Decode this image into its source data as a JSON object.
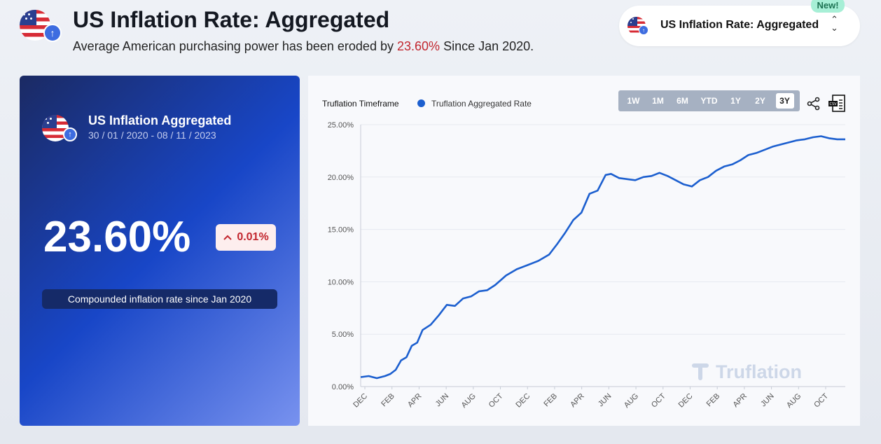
{
  "header": {
    "title": "US Inflation Rate: Aggregated",
    "subtitle_pre": "Average American purchasing power has been eroded by",
    "subtitle_value": "23.60%",
    "subtitle_post": "Since Jan 2020."
  },
  "selector": {
    "label": "US Inflation Rate: Aggregated",
    "new_badge": "New!"
  },
  "card": {
    "title": "US Inflation Aggregated",
    "dates": "30 / 01 / 2020 - 08 / 11 / 2023",
    "value": "23.60%",
    "change": "0.01%",
    "change_direction": "up",
    "caption": "Compounded inflation rate since Jan 2020"
  },
  "chart_panel": {
    "legend_title": "Truflation Timeframe",
    "series_label": "Truflation Aggregated Rate",
    "timeframes": [
      "1W",
      "1M",
      "6M",
      "YTD",
      "1Y",
      "2Y",
      "3Y"
    ],
    "active_timeframe": "3Y",
    "watermark": "Truflation"
  },
  "colors": {
    "series": "#1c5fcf",
    "accent_red": "#c2262e"
  },
  "chart_data": {
    "type": "line",
    "title": "",
    "xlabel": "",
    "ylabel": "",
    "ylim": [
      0,
      25
    ],
    "y_ticks": [
      0,
      5,
      10,
      15,
      20,
      25
    ],
    "y_tick_labels": [
      "0.00%",
      "5.00%",
      "10.00%",
      "15.00%",
      "20.00%",
      "25.00%"
    ],
    "x_tick_labels": [
      "DEC",
      "FEB",
      "APR",
      "JUN",
      "AUG",
      "OCT",
      "DEC",
      "FEB",
      "APR",
      "JUN",
      "AUG",
      "OCT",
      "DEC",
      "FEB",
      "APR",
      "JUN",
      "AUG",
      "OCT"
    ],
    "x_range": [
      0,
      18
    ],
    "series": [
      {
        "name": "Truflation Aggregated Rate",
        "x": [
          0,
          0.3,
          0.6,
          0.9,
          1.1,
          1.3,
          1.5,
          1.7,
          1.9,
          2.1,
          2.3,
          2.6,
          2.9,
          3.2,
          3.5,
          3.8,
          4.1,
          4.4,
          4.7,
          5.0,
          5.4,
          5.8,
          6.2,
          6.6,
          7.0,
          7.3,
          7.6,
          7.9,
          8.2,
          8.5,
          8.8,
          9.1,
          9.3,
          9.6,
          9.9,
          10.2,
          10.5,
          10.8,
          11.1,
          11.4,
          11.7,
          12.0,
          12.3,
          12.6,
          12.9,
          13.2,
          13.5,
          13.8,
          14.1,
          14.4,
          14.7,
          15.0,
          15.3,
          15.6,
          15.9,
          16.2,
          16.5,
          16.8,
          17.1,
          17.4,
          17.7,
          18.0
        ],
        "y": [
          0.9,
          1.0,
          0.8,
          1.0,
          1.2,
          1.6,
          2.5,
          2.8,
          3.9,
          4.2,
          5.4,
          5.9,
          6.8,
          7.8,
          7.7,
          8.4,
          8.6,
          9.1,
          9.2,
          9.7,
          10.6,
          11.2,
          11.6,
          12.0,
          12.6,
          13.6,
          14.7,
          15.9,
          16.6,
          18.4,
          18.7,
          20.2,
          20.3,
          19.9,
          19.8,
          19.7,
          20.0,
          20.1,
          20.4,
          20.1,
          19.7,
          19.3,
          19.1,
          19.7,
          20.0,
          20.6,
          21.0,
          21.2,
          21.6,
          22.1,
          22.3,
          22.6,
          22.9,
          23.1,
          23.3,
          23.5,
          23.6,
          23.8,
          23.9,
          23.7,
          23.6,
          23.6
        ]
      }
    ]
  }
}
